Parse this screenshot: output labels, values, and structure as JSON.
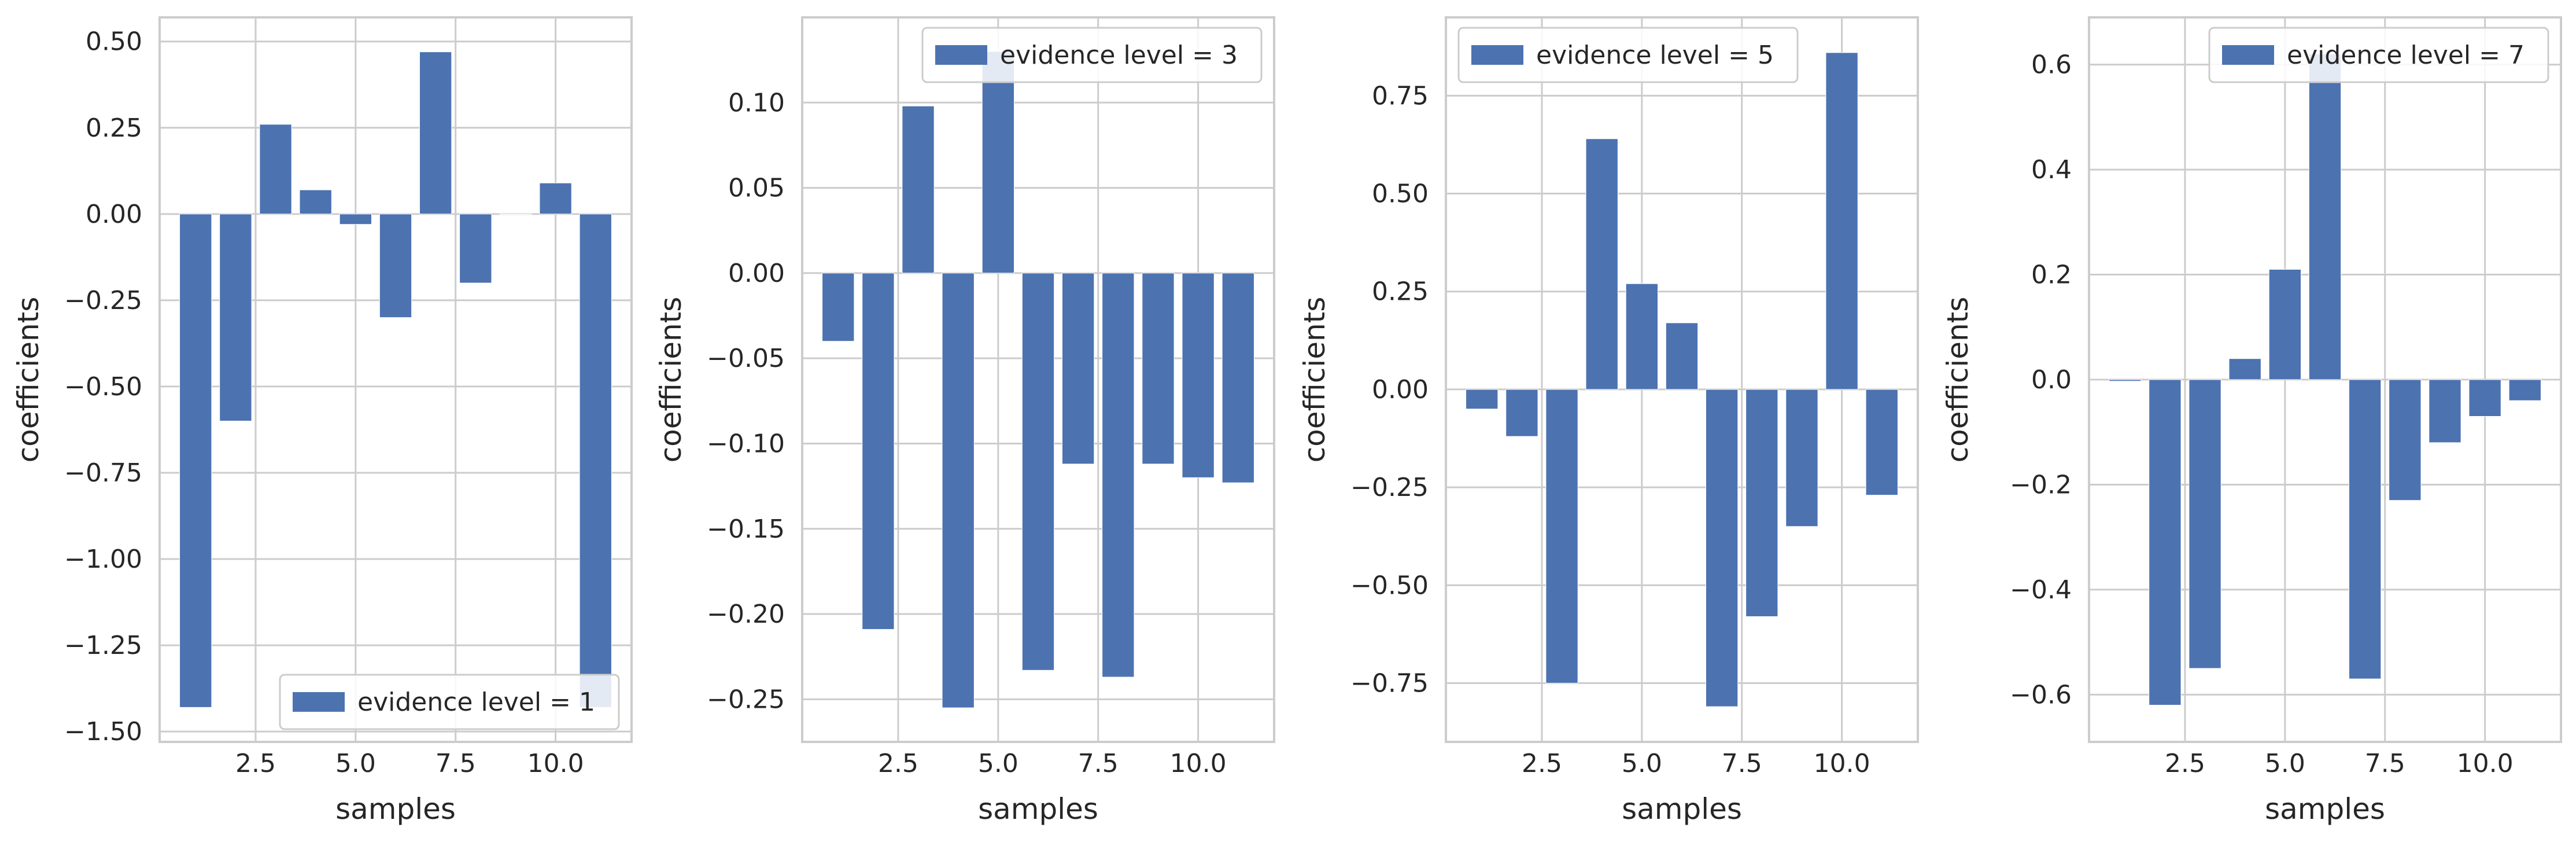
{
  "colors": {
    "bar": "#4c72b0",
    "grid": "#cccccc",
    "frame": "#cccccc",
    "text": "#262626",
    "background": "#ffffff"
  },
  "chart_data": [
    {
      "type": "bar",
      "x": [
        1,
        2,
        3,
        4,
        5,
        6,
        7,
        8,
        9,
        10,
        11
      ],
      "series": [
        {
          "name": "evidence level = 1",
          "values": [
            -1.43,
            -0.6,
            0.26,
            0.07,
            -0.03,
            -0.3,
            0.47,
            -0.2,
            0.0,
            0.09,
            -1.43
          ]
        }
      ],
      "xlabel": "samples",
      "ylabel": "coefficients",
      "xlim": [
        0.1,
        11.9
      ],
      "ylim": [
        -1.53,
        0.57
      ],
      "xticks": [
        2.5,
        5.0,
        7.5,
        10.0
      ],
      "xtick_labels": [
        "2.5",
        "5.0",
        "7.5",
        "10.0"
      ],
      "yticks": [
        -1.5,
        -1.25,
        -1.0,
        -0.75,
        -0.5,
        -0.25,
        0.0,
        0.25,
        0.5
      ],
      "ytick_labels": [
        "−1.50",
        "−1.25",
        "−1.00",
        "−0.75",
        "−0.50",
        "−0.25",
        "0.00",
        "0.25",
        "0.50"
      ],
      "legend_position": "lower-right",
      "grid": true
    },
    {
      "type": "bar",
      "x": [
        1,
        2,
        3,
        4,
        5,
        6,
        7,
        8,
        9,
        10,
        11
      ],
      "series": [
        {
          "name": "evidence level = 3",
          "values": [
            -0.04,
            -0.209,
            0.098,
            -0.255,
            0.13,
            -0.233,
            -0.112,
            -0.237,
            -0.112,
            -0.12,
            -0.123
          ]
        }
      ],
      "xlabel": "samples",
      "ylabel": "coefficients",
      "xlim": [
        0.1,
        11.9
      ],
      "ylim": [
        -0.275,
        0.15
      ],
      "xticks": [
        2.5,
        5.0,
        7.5,
        10.0
      ],
      "xtick_labels": [
        "2.5",
        "5.0",
        "7.5",
        "10.0"
      ],
      "yticks": [
        -0.25,
        -0.2,
        -0.15,
        -0.1,
        -0.05,
        0.0,
        0.05,
        0.1
      ],
      "ytick_labels": [
        "−0.25",
        "−0.20",
        "−0.15",
        "−0.10",
        "−0.05",
        "0.00",
        "0.05",
        "0.10"
      ],
      "legend_position": "upper-right",
      "grid": true
    },
    {
      "type": "bar",
      "x": [
        1,
        2,
        3,
        4,
        5,
        6,
        7,
        8,
        9,
        10,
        11
      ],
      "series": [
        {
          "name": "evidence level = 5",
          "values": [
            -0.05,
            -0.12,
            -0.75,
            0.64,
            0.27,
            0.17,
            -0.81,
            -0.58,
            -0.35,
            0.86,
            -0.27
          ]
        }
      ],
      "xlabel": "samples",
      "ylabel": "coefficients",
      "xlim": [
        0.1,
        11.9
      ],
      "ylim": [
        -0.9,
        0.95
      ],
      "xticks": [
        2.5,
        5.0,
        7.5,
        10.0
      ],
      "xtick_labels": [
        "2.5",
        "5.0",
        "7.5",
        "10.0"
      ],
      "yticks": [
        -0.75,
        -0.5,
        -0.25,
        0.0,
        0.25,
        0.5,
        0.75
      ],
      "ytick_labels": [
        "−0.75",
        "−0.50",
        "−0.25",
        "0.00",
        "0.25",
        "0.50",
        "0.75"
      ],
      "legend_position": "upper-left",
      "grid": true
    },
    {
      "type": "bar",
      "x": [
        1,
        2,
        3,
        4,
        5,
        6,
        7,
        8,
        9,
        10,
        11
      ],
      "series": [
        {
          "name": "evidence level = 7",
          "values": [
            -0.003,
            -0.62,
            -0.55,
            0.04,
            0.21,
            0.62,
            -0.57,
            -0.23,
            -0.12,
            -0.07,
            -0.04
          ]
        }
      ],
      "xlabel": "samples",
      "ylabel": "coefficients",
      "xlim": [
        0.1,
        11.9
      ],
      "ylim": [
        -0.69,
        0.69
      ],
      "xticks": [
        2.5,
        5.0,
        7.5,
        10.0
      ],
      "xtick_labels": [
        "2.5",
        "5.0",
        "7.5",
        "10.0"
      ],
      "yticks": [
        -0.6,
        -0.4,
        -0.2,
        0.0,
        0.2,
        0.4,
        0.6
      ],
      "ytick_labels": [
        "−0.6",
        "−0.4",
        "−0.2",
        "0.0",
        "0.2",
        "0.4",
        "0.6"
      ],
      "legend_position": "upper-right",
      "grid": true
    }
  ]
}
